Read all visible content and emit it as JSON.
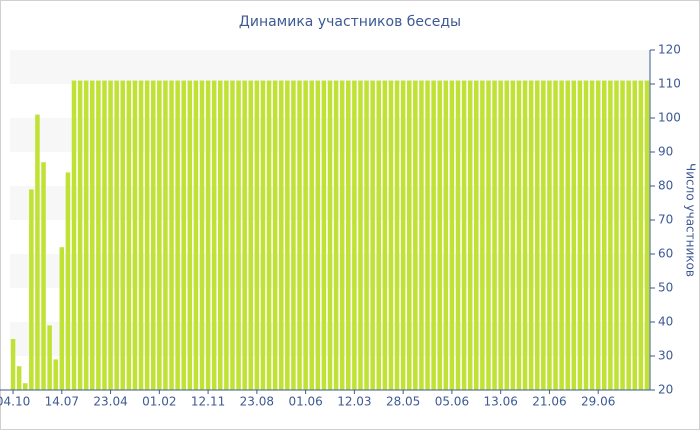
{
  "chart_data": {
    "type": "bar",
    "title": "Динамика участников беседы",
    "y_label": "Число участников",
    "categories": [
      "04.10",
      null,
      null,
      null,
      null,
      null,
      null,
      null,
      "14.07",
      null,
      null,
      null,
      null,
      null,
      null,
      null,
      "23.04",
      null,
      null,
      null,
      null,
      null,
      null,
      null,
      "01.02",
      null,
      null,
      null,
      null,
      null,
      null,
      null,
      "12.11",
      null,
      null,
      null,
      null,
      null,
      null,
      null,
      "23.08",
      null,
      null,
      null,
      null,
      null,
      null,
      null,
      "01.06",
      null,
      null,
      null,
      null,
      null,
      null,
      null,
      "12.03",
      null,
      null,
      null,
      null,
      null,
      null,
      null,
      "28.05",
      null,
      null,
      null,
      null,
      null,
      null,
      null,
      "05.06",
      null,
      null,
      null,
      null,
      null,
      null,
      null,
      "13.06",
      null,
      null,
      null,
      null,
      null,
      null,
      null,
      "21.06",
      null,
      null,
      null,
      null,
      null,
      null,
      null,
      "29.06",
      null,
      null,
      null,
      null,
      null,
      null,
      null,
      null
    ],
    "values": [
      35,
      27,
      22,
      79,
      101,
      87,
      39,
      29,
      62,
      84,
      111,
      111,
      111,
      111,
      111,
      111,
      111,
      111,
      111,
      111,
      111,
      111,
      111,
      111,
      111,
      111,
      111,
      111,
      111,
      111,
      111,
      111,
      111,
      111,
      111,
      111,
      111,
      111,
      111,
      111,
      111,
      111,
      111,
      111,
      111,
      111,
      111,
      111,
      111,
      111,
      111,
      111,
      111,
      111,
      111,
      111,
      111,
      111,
      111,
      111,
      111,
      111,
      111,
      111,
      111,
      111,
      111,
      111,
      111,
      111,
      111,
      111,
      111,
      111,
      111,
      111,
      111,
      111,
      111,
      111,
      111,
      111,
      111,
      111,
      111,
      111,
      111,
      111,
      111,
      111,
      111,
      111,
      111,
      111,
      111,
      111,
      111,
      111,
      111,
      111,
      111,
      111,
      111,
      111,
      111
    ],
    "color": "#bfe235",
    "ylim": [
      20,
      120
    ],
    "yticks": [
      20,
      30,
      40,
      50,
      60,
      70,
      80,
      90,
      100,
      110,
      120
    ],
    "y_axis_side": "right",
    "grid": "bands"
  }
}
